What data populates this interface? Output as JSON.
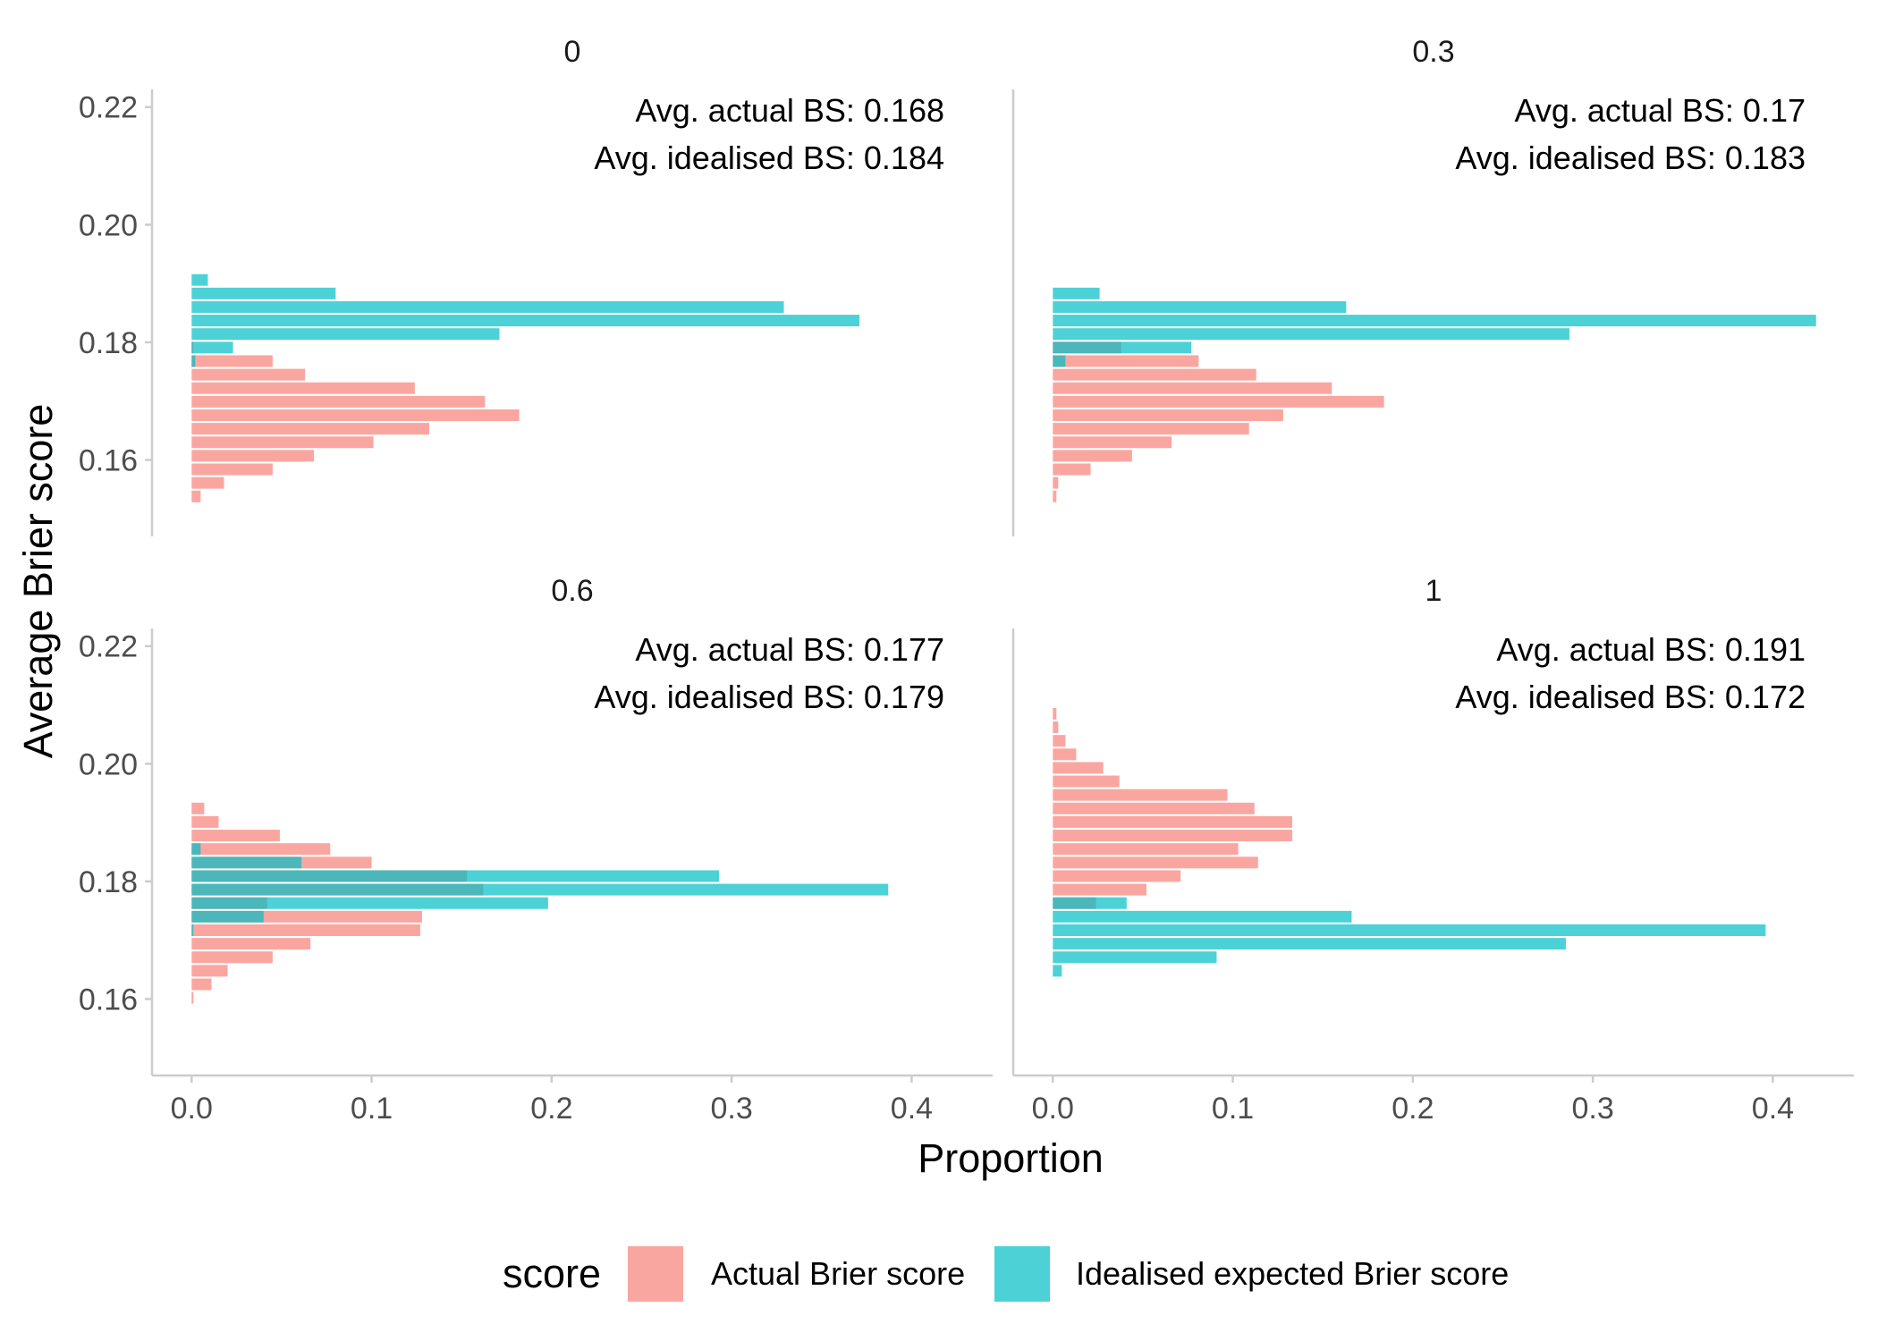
{
  "chart_data": {
    "type": "bar",
    "orientation": "horizontal",
    "faceted_by": "panel",
    "xlabel": "Proportion",
    "ylabel": "Average Brier score",
    "xlim": [
      -0.022,
      0.445
    ],
    "ylim": [
      0.147,
      0.223
    ],
    "x_ticks": [
      "0.0",
      "0.1",
      "0.2",
      "0.3",
      "0.4"
    ],
    "y_ticks": [
      "0.16",
      "0.18",
      "0.20",
      "0.22"
    ],
    "grid": false,
    "legend": {
      "title": "score",
      "position": "bottom",
      "items": [
        {
          "label": "Actual Brier score",
          "color": "#F8766D"
        },
        {
          "label": "Idealised expected Brier score",
          "color": "#00BFC4"
        }
      ]
    },
    "panels": [
      {
        "title": "0",
        "annotations": [
          "Avg. actual BS: 0.168",
          "Avg. idealised BS: 0.184"
        ],
        "series": [
          {
            "name": "Actual Brier score",
            "color": "#F8766D",
            "y": [
              0.1538,
              0.1561,
              0.1584,
              0.1607,
              0.163,
              0.1653,
              0.1676,
              0.1699,
              0.1722,
              0.1745,
              0.1768,
              0.1791
            ],
            "values": [
              0.005,
              0.018,
              0.045,
              0.068,
              0.101,
              0.132,
              0.182,
              0.163,
              0.124,
              0.063,
              0.045,
              0.001
            ]
          },
          {
            "name": "Idealised expected Brier score",
            "color": "#00BFC4",
            "y": [
              0.1768,
              0.1791,
              0.1814,
              0.1837,
              0.186,
              0.1883,
              0.1906
            ],
            "values": [
              0.002,
              0.023,
              0.171,
              0.371,
              0.329,
              0.08,
              0.009
            ]
          }
        ]
      },
      {
        "title": "0.3",
        "annotations": [
          "Avg. actual BS: 0.17",
          "Avg. idealised BS: 0.183"
        ],
        "series": [
          {
            "name": "Actual Brier score",
            "color": "#F8766D",
            "y": [
              0.1538,
              0.1561,
              0.1584,
              0.1607,
              0.163,
              0.1653,
              0.1676,
              0.1699,
              0.1722,
              0.1745,
              0.1768,
              0.1791
            ],
            "values": [
              0.002,
              0.003,
              0.021,
              0.044,
              0.066,
              0.109,
              0.128,
              0.184,
              0.155,
              0.113,
              0.081,
              0.038
            ]
          },
          {
            "name": "Idealised expected Brier score",
            "color": "#00BFC4",
            "y": [
              0.1768,
              0.1791,
              0.1814,
              0.1837,
              0.186,
              0.1883
            ],
            "values": [
              0.007,
              0.077,
              0.287,
              0.424,
              0.163,
              0.026
            ]
          }
        ]
      },
      {
        "title": "0.6",
        "annotations": [
          "Avg. actual BS: 0.177",
          "Avg. idealised BS: 0.179"
        ],
        "series": [
          {
            "name": "Actual Brier score",
            "color": "#F8766D",
            "y": [
              0.1602,
              0.1625,
              0.1648,
              0.1671,
              0.1694,
              0.1717,
              0.174,
              0.1763,
              0.1786,
              0.1809,
              0.1832,
              0.1855,
              0.1878,
              0.1901,
              0.1924
            ],
            "values": [
              0.001,
              0.011,
              0.02,
              0.045,
              0.066,
              0.127,
              0.128,
              0.042,
              0.162,
              0.153,
              0.1,
              0.077,
              0.049,
              0.015,
              0.007
            ]
          },
          {
            "name": "Idealised expected Brier score",
            "color": "#00BFC4",
            "y": [
              0.1717,
              0.174,
              0.1763,
              0.1786,
              0.1809,
              0.1832,
              0.1855
            ],
            "values": [
              0.001,
              0.04,
              0.198,
              0.387,
              0.293,
              0.061,
              0.005
            ]
          }
        ]
      },
      {
        "title": "1",
        "annotations": [
          "Avg. actual BS: 0.191",
          "Avg. idealised BS: 0.172"
        ],
        "series": [
          {
            "name": "Actual Brier score",
            "color": "#F8766D",
            "y": [
              0.1763,
              0.1786,
              0.1809,
              0.1832,
              0.1855,
              0.1878,
              0.1901,
              0.1924,
              0.1947,
              0.197,
              0.1993,
              0.2016,
              0.2039,
              0.2062,
              0.2085
            ],
            "values": [
              0.024,
              0.052,
              0.071,
              0.114,
              0.103,
              0.133,
              0.133,
              0.112,
              0.097,
              0.037,
              0.028,
              0.013,
              0.007,
              0.003,
              0.002
            ]
          },
          {
            "name": "Idealised expected Brier score",
            "color": "#00BFC4",
            "y": [
              0.1648,
              0.1671,
              0.1694,
              0.1717,
              0.174,
              0.1763
            ],
            "values": [
              0.005,
              0.091,
              0.285,
              0.396,
              0.166,
              0.041
            ]
          }
        ]
      }
    ]
  }
}
